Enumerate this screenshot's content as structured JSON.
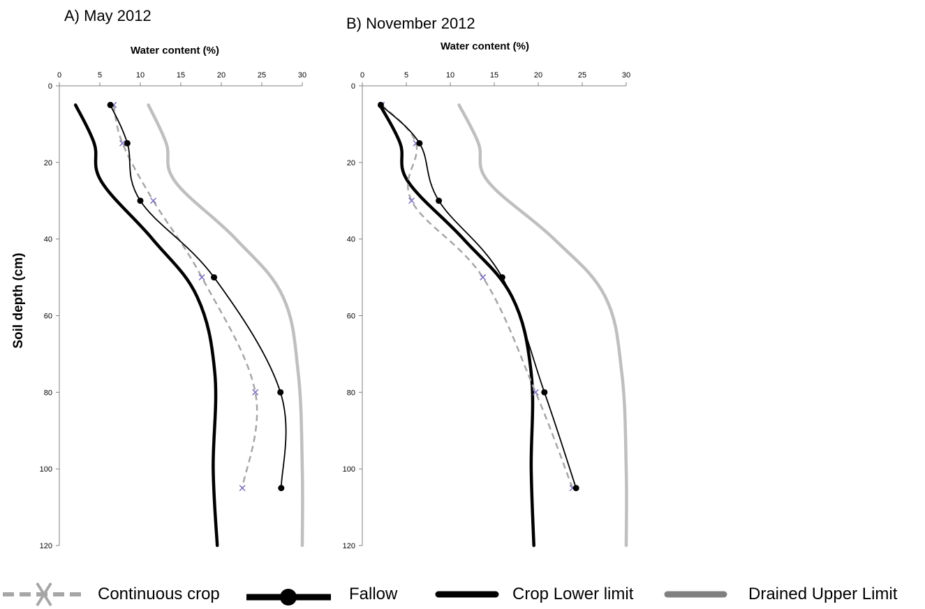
{
  "ylabel": "Soil depth (cm)",
  "legend": {
    "items": [
      {
        "key": "continuous",
        "label": "Continuous crop"
      },
      {
        "key": "fallow",
        "label": "Fallow"
      },
      {
        "key": "cll",
        "label": "Crop Lower limit"
      },
      {
        "key": "dul",
        "label": "Drained Upper Limit"
      }
    ]
  },
  "colors": {
    "continuous": "#a6a6a6",
    "continuous_marker": "#7f6fbf",
    "fallow": "#000000",
    "cll": "#000000",
    "dul": "#bfbfbf",
    "axis": "#7f7f7f"
  },
  "chart_data": [
    {
      "type": "line",
      "title": "A) May 2012",
      "xlabel": "Water content (%)",
      "ylabel": "Soil depth (cm)",
      "xlim": [
        0,
        30
      ],
      "ylim": [
        0,
        120
      ],
      "y_reversed": true,
      "x_axis_position": "top",
      "xticks": [
        0,
        5,
        10,
        15,
        20,
        25,
        30
      ],
      "yticks": [
        0,
        20,
        40,
        60,
        80,
        100,
        120
      ],
      "series": [
        {
          "name": "Continuous crop",
          "key": "continuous",
          "x": [
            6.7,
            7.8,
            11.6,
            17.6,
            24.2,
            22.6
          ],
          "y": [
            5,
            15,
            30,
            50,
            80,
            105
          ]
        },
        {
          "name": "Fallow",
          "key": "fallow",
          "x": [
            6.3,
            8.4,
            10.0,
            19.1,
            27.3,
            27.4
          ],
          "y": [
            5,
            15,
            30,
            50,
            80,
            105
          ]
        },
        {
          "name": "Crop Lower limit",
          "key": "cll",
          "x": [
            2.0,
            4.3,
            5.2,
            11.5,
            17.0,
            19.2,
            19.0,
            19.5
          ],
          "y": [
            5,
            15,
            25,
            40,
            55,
            75,
            100,
            120
          ]
        },
        {
          "name": "Drained Upper Limit",
          "key": "dul",
          "x": [
            11.0,
            13.2,
            14.3,
            21.8,
            27.6,
            29.5,
            30.0,
            30.0
          ],
          "y": [
            5,
            15,
            25,
            40,
            55,
            75,
            100,
            120
          ]
        }
      ]
    },
    {
      "type": "line",
      "title": "B) November 2012",
      "xlabel": "Water content (%)",
      "ylabel": "",
      "xlim": [
        0,
        30
      ],
      "ylim": [
        0,
        120
      ],
      "y_reversed": true,
      "x_axis_position": "top",
      "xticks": [
        0,
        5,
        10,
        15,
        20,
        25,
        30
      ],
      "yticks": [
        0,
        20,
        40,
        60,
        80,
        100,
        120
      ],
      "series": [
        {
          "name": "Continuous crop",
          "key": "continuous",
          "x": [
            2.2,
            6.1,
            5.6,
            13.7,
            19.7,
            23.9
          ],
          "y": [
            5,
            15,
            30,
            50,
            80,
            105
          ]
        },
        {
          "name": "Fallow",
          "key": "fallow",
          "x": [
            2.1,
            6.5,
            8.7,
            15.9,
            20.7,
            24.3
          ],
          "y": [
            5,
            15,
            30,
            50,
            80,
            105
          ]
        },
        {
          "name": "Crop Lower limit",
          "key": "cll",
          "x": [
            2.0,
            4.3,
            5.2,
            11.5,
            17.0,
            19.2,
            19.2,
            19.5
          ],
          "y": [
            5,
            15,
            25,
            40,
            55,
            75,
            100,
            120
          ]
        },
        {
          "name": "Drained Upper Limit",
          "key": "dul",
          "x": [
            11.0,
            13.2,
            14.3,
            21.8,
            27.6,
            29.5,
            30.0,
            30.0
          ],
          "y": [
            5,
            15,
            25,
            40,
            55,
            75,
            100,
            120
          ]
        }
      ]
    }
  ]
}
